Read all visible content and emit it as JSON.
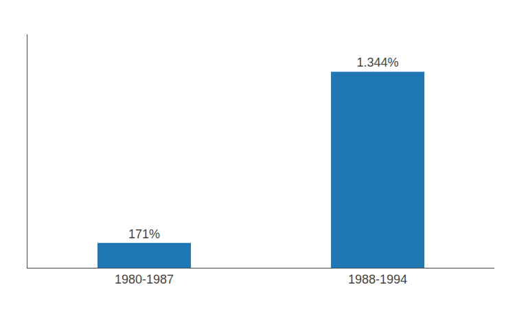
{
  "chart_data": {
    "type": "bar",
    "categories": [
      "1980-1987",
      "1988-1994"
    ],
    "values": [
      171,
      1344
    ],
    "value_labels": [
      "171%",
      "1.344%"
    ],
    "data_labels": true,
    "ylim": [
      0,
      1600
    ],
    "tick_labels": "x",
    "grid": false
  }
}
